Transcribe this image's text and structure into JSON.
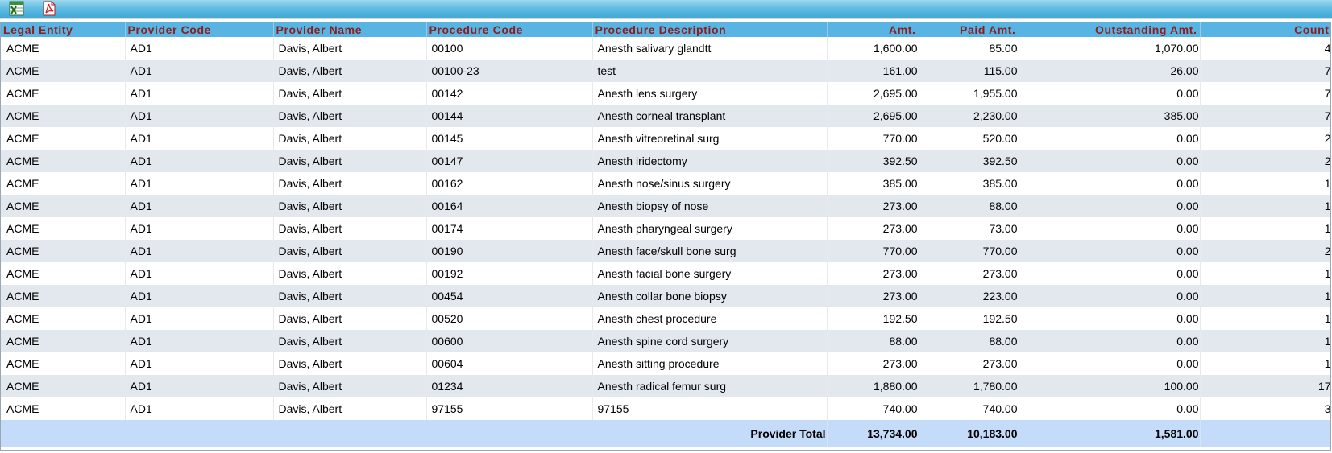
{
  "toolbar": {
    "excel_icon": "excel-export-icon",
    "pdf_icon": "pdf-export-icon"
  },
  "colors": {
    "toolbar_blue": "#3fa9d6",
    "header_blue": "#58b5e3",
    "header_text": "#8b1e1e",
    "row_alt": "#e3e7ee",
    "total_row": "#c4dbfa"
  },
  "table": {
    "columns": [
      "Legal Entity",
      "Provider Code",
      "Provider Name",
      "Procedure Code",
      "Procedure Description",
      "Amt.",
      "Paid Amt.",
      "Outstanding Amt.",
      "Count"
    ],
    "rows": [
      [
        "ACME",
        "AD1",
        "Davis, Albert",
        "00100",
        "Anesth salivary glandtt",
        "1,600.00",
        "85.00",
        "1,070.00",
        "4"
      ],
      [
        "ACME",
        "AD1",
        "Davis, Albert",
        "00100-23",
        "test",
        "161.00",
        "115.00",
        "26.00",
        "7"
      ],
      [
        "ACME",
        "AD1",
        "Davis, Albert",
        "00142",
        "Anesth lens surgery",
        "2,695.00",
        "1,955.00",
        "0.00",
        "7"
      ],
      [
        "ACME",
        "AD1",
        "Davis, Albert",
        "00144",
        "Anesth corneal transplant",
        "2,695.00",
        "2,230.00",
        "385.00",
        "7"
      ],
      [
        "ACME",
        "AD1",
        "Davis, Albert",
        "00145",
        "Anesth vitreoretinal surg",
        "770.00",
        "520.00",
        "0.00",
        "2"
      ],
      [
        "ACME",
        "AD1",
        "Davis, Albert",
        "00147",
        "Anesth iridectomy",
        "392.50",
        "392.50",
        "0.00",
        "2"
      ],
      [
        "ACME",
        "AD1",
        "Davis, Albert",
        "00162",
        "Anesth nose/sinus surgery",
        "385.00",
        "385.00",
        "0.00",
        "1"
      ],
      [
        "ACME",
        "AD1",
        "Davis, Albert",
        "00164",
        "Anesth biopsy of nose",
        "273.00",
        "88.00",
        "0.00",
        "1"
      ],
      [
        "ACME",
        "AD1",
        "Davis, Albert",
        "00174",
        "Anesth pharyngeal surgery",
        "273.00",
        "73.00",
        "0.00",
        "1"
      ],
      [
        "ACME",
        "AD1",
        "Davis, Albert",
        "00190",
        "Anesth face/skull bone surg",
        "770.00",
        "770.00",
        "0.00",
        "2"
      ],
      [
        "ACME",
        "AD1",
        "Davis, Albert",
        "00192",
        "Anesth facial bone surgery",
        "273.00",
        "273.00",
        "0.00",
        "1"
      ],
      [
        "ACME",
        "AD1",
        "Davis, Albert",
        "00454",
        "Anesth collar bone biopsy",
        "273.00",
        "223.00",
        "0.00",
        "1"
      ],
      [
        "ACME",
        "AD1",
        "Davis, Albert",
        "00520",
        "Anesth chest procedure",
        "192.50",
        "192.50",
        "0.00",
        "1"
      ],
      [
        "ACME",
        "AD1",
        "Davis, Albert",
        "00600",
        "Anesth spine cord surgery",
        "88.00",
        "88.00",
        "0.00",
        "1"
      ],
      [
        "ACME",
        "AD1",
        "Davis, Albert",
        "00604",
        "Anesth sitting procedure",
        "273.00",
        "273.00",
        "0.00",
        "1"
      ],
      [
        "ACME",
        "AD1",
        "Davis, Albert",
        "01234",
        "Anesth radical femur surg",
        "1,880.00",
        "1,780.00",
        "100.00",
        "17"
      ],
      [
        "ACME",
        "AD1",
        "Davis, Albert",
        "97155",
        "97155",
        "740.00",
        "740.00",
        "0.00",
        "3"
      ]
    ],
    "total": {
      "label": "Provider Total",
      "amt": "13,734.00",
      "paid": "10,183.00",
      "outstanding": "1,581.00",
      "count": ""
    }
  }
}
